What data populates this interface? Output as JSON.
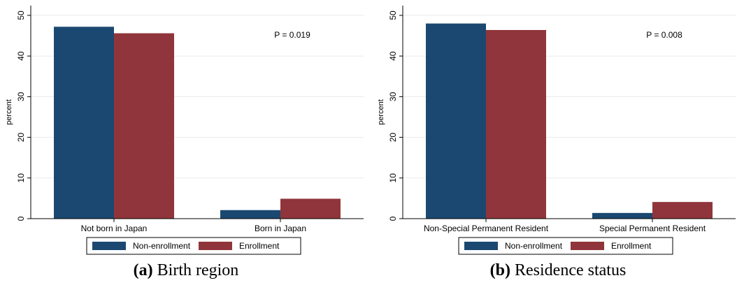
{
  "chart_data": [
    {
      "type": "bar",
      "caption_label": "(a)",
      "caption_text": "Birth region",
      "categories": [
        "Not born in Japan",
        "Born in Japan"
      ],
      "series": [
        {
          "name": "Non-enrollment",
          "values": [
            47.2,
            2.1
          ],
          "color": "#1b4870"
        },
        {
          "name": "Enrollment",
          "values": [
            45.6,
            4.9
          ],
          "color": "#90353b"
        }
      ],
      "ylabel": "percent",
      "ylim": [
        0,
        50
      ],
      "yticks": [
        "0",
        "10",
        "20",
        "30",
        "40",
        "50"
      ],
      "annotation": "P = 0.019",
      "grid": true,
      "legend_position": "bottom"
    },
    {
      "type": "bar",
      "caption_label": "(b)",
      "caption_text": "Residence status",
      "categories": [
        "Non-Special Permanent Resident",
        "Special Permanent Resident"
      ],
      "series": [
        {
          "name": "Non-enrollment",
          "values": [
            48.0,
            1.4
          ],
          "color": "#1b4870"
        },
        {
          "name": "Enrollment",
          "values": [
            46.4,
            4.1
          ],
          "color": "#90353b"
        }
      ],
      "ylabel": "percent",
      "ylim": [
        0,
        50
      ],
      "yticks": [
        "0",
        "10",
        "20",
        "30",
        "40",
        "50"
      ],
      "annotation": "P = 0.008",
      "grid": true,
      "legend_position": "bottom"
    }
  ]
}
